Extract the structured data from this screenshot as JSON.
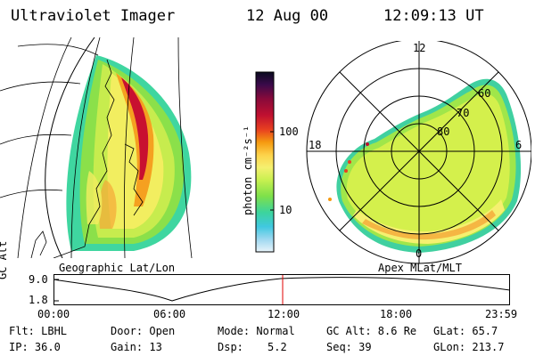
{
  "header": {
    "instrument": "Ultraviolet Imager",
    "date": "12 Aug 00",
    "time": "12:09:13 UT"
  },
  "geographic_panel": {
    "caption": "Geographic Lat/Lon"
  },
  "colorbar": {
    "unit_label": "photon cm⁻²s⁻¹",
    "ticks": [
      "100",
      "10"
    ],
    "colors": [
      "#0a0a20",
      "#3a0a4a",
      "#8a0a3a",
      "#c01030",
      "#e84020",
      "#f59a10",
      "#fdd24a",
      "#f5f070",
      "#c8f050",
      "#7ee04a",
      "#3cd49c",
      "#40c8e0",
      "#9ed8f0",
      "#e8f4fa"
    ]
  },
  "polar_panel": {
    "caption": "Apex MLat/MLT",
    "mlt_labels": {
      "top": "12",
      "left": "18",
      "right": "6",
      "bottom": "0"
    },
    "lat_labels": [
      "60",
      "70",
      "80"
    ]
  },
  "altitude_plot": {
    "ylabel": "GC Alt",
    "yticks": [
      "9.0",
      "1.8"
    ],
    "xticks": [
      "00:00",
      "06:00",
      "12:00",
      "18:00",
      "23:59"
    ],
    "marker_color": "#e00000"
  },
  "info": {
    "row1": {
      "flt": "Flt: LBHL",
      "door": "Door: Open",
      "mode": "Mode: Normal",
      "gc_alt": "GC Alt: 8.6 Re",
      "glat": "GLat: 65.7"
    },
    "row2": {
      "ip": "IP: 36.0",
      "gain": "Gain: 13",
      "dsp_label": "Dsp:",
      "dsp_value": "5.2",
      "seq": "Seq: 39",
      "glon": "GLon: 213.7"
    }
  }
}
